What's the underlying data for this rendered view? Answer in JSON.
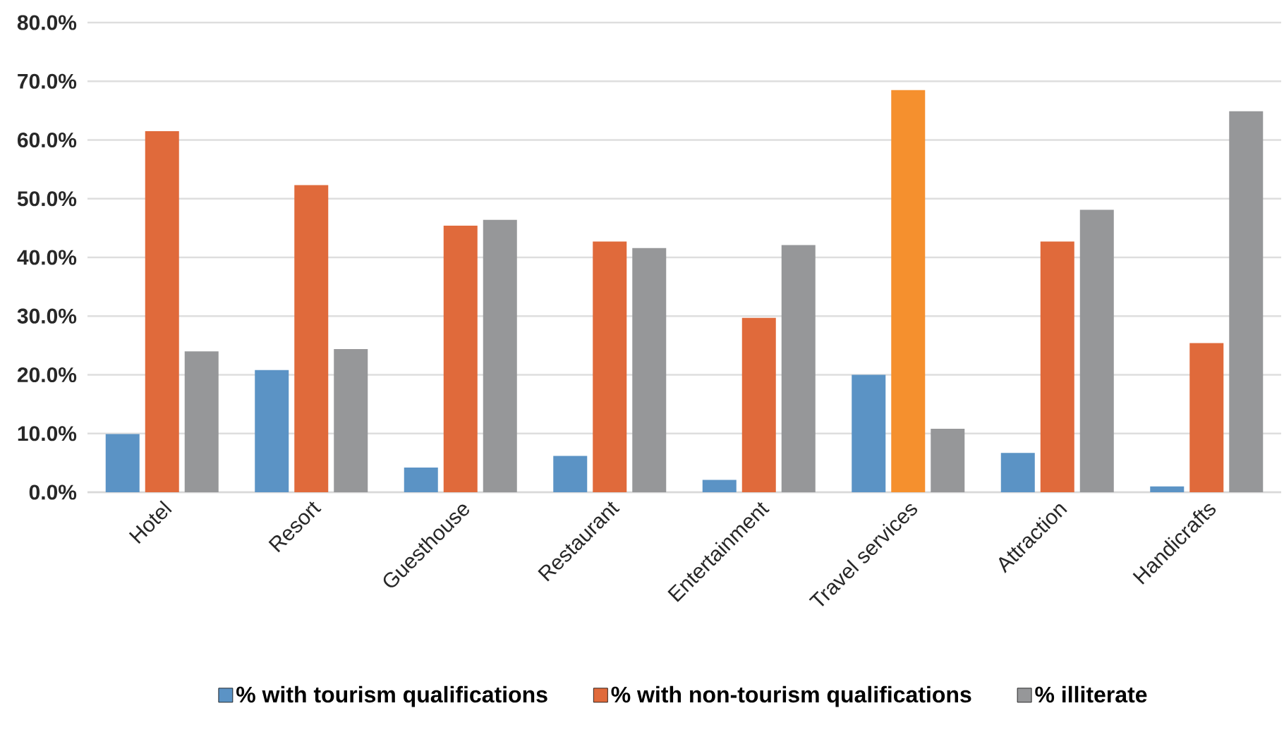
{
  "chart_data": {
    "type": "bar",
    "categories": [
      "Hotel",
      "Resort",
      "Guesthouse",
      "Restaurant",
      "Entertainment",
      "Travel services",
      "Attraction",
      "Handicrafts"
    ],
    "series": [
      {
        "name": "% with tourism qualifications",
        "color": "#5b93c5",
        "values": [
          9.9,
          20.8,
          4.2,
          6.2,
          2.1,
          20.0,
          6.7,
          1.0
        ]
      },
      {
        "name": "% with non-tourism qualifications",
        "color": "#e06a3b",
        "colors": [
          "#e06a3b",
          "#e06a3b",
          "#e06a3b",
          "#e06a3b",
          "#e06a3b",
          "#f5902e",
          "#e06a3b",
          "#e06a3b"
        ],
        "values": [
          61.5,
          52.3,
          45.4,
          42.7,
          29.7,
          68.5,
          42.7,
          25.4
        ]
      },
      {
        "name": "% illiterate",
        "color": "#969799",
        "values": [
          24.0,
          24.4,
          46.4,
          41.6,
          42.1,
          10.8,
          48.1,
          64.9
        ]
      }
    ],
    "ylim": [
      0,
      80
    ],
    "yticks": [
      {
        "value": 0,
        "label": "0.0%"
      },
      {
        "value": 10,
        "label": "10.0%"
      },
      {
        "value": 20,
        "label": "20.0%"
      },
      {
        "value": 30,
        "label": "30.0%"
      },
      {
        "value": 40,
        "label": "40.0%"
      },
      {
        "value": 50,
        "label": "50.0%"
      },
      {
        "value": 60,
        "label": "60.0%"
      },
      {
        "value": 70,
        "label": "70.0%"
      },
      {
        "value": 80,
        "label": "80.0%"
      }
    ],
    "grid": "y",
    "legend": "bottom"
  }
}
